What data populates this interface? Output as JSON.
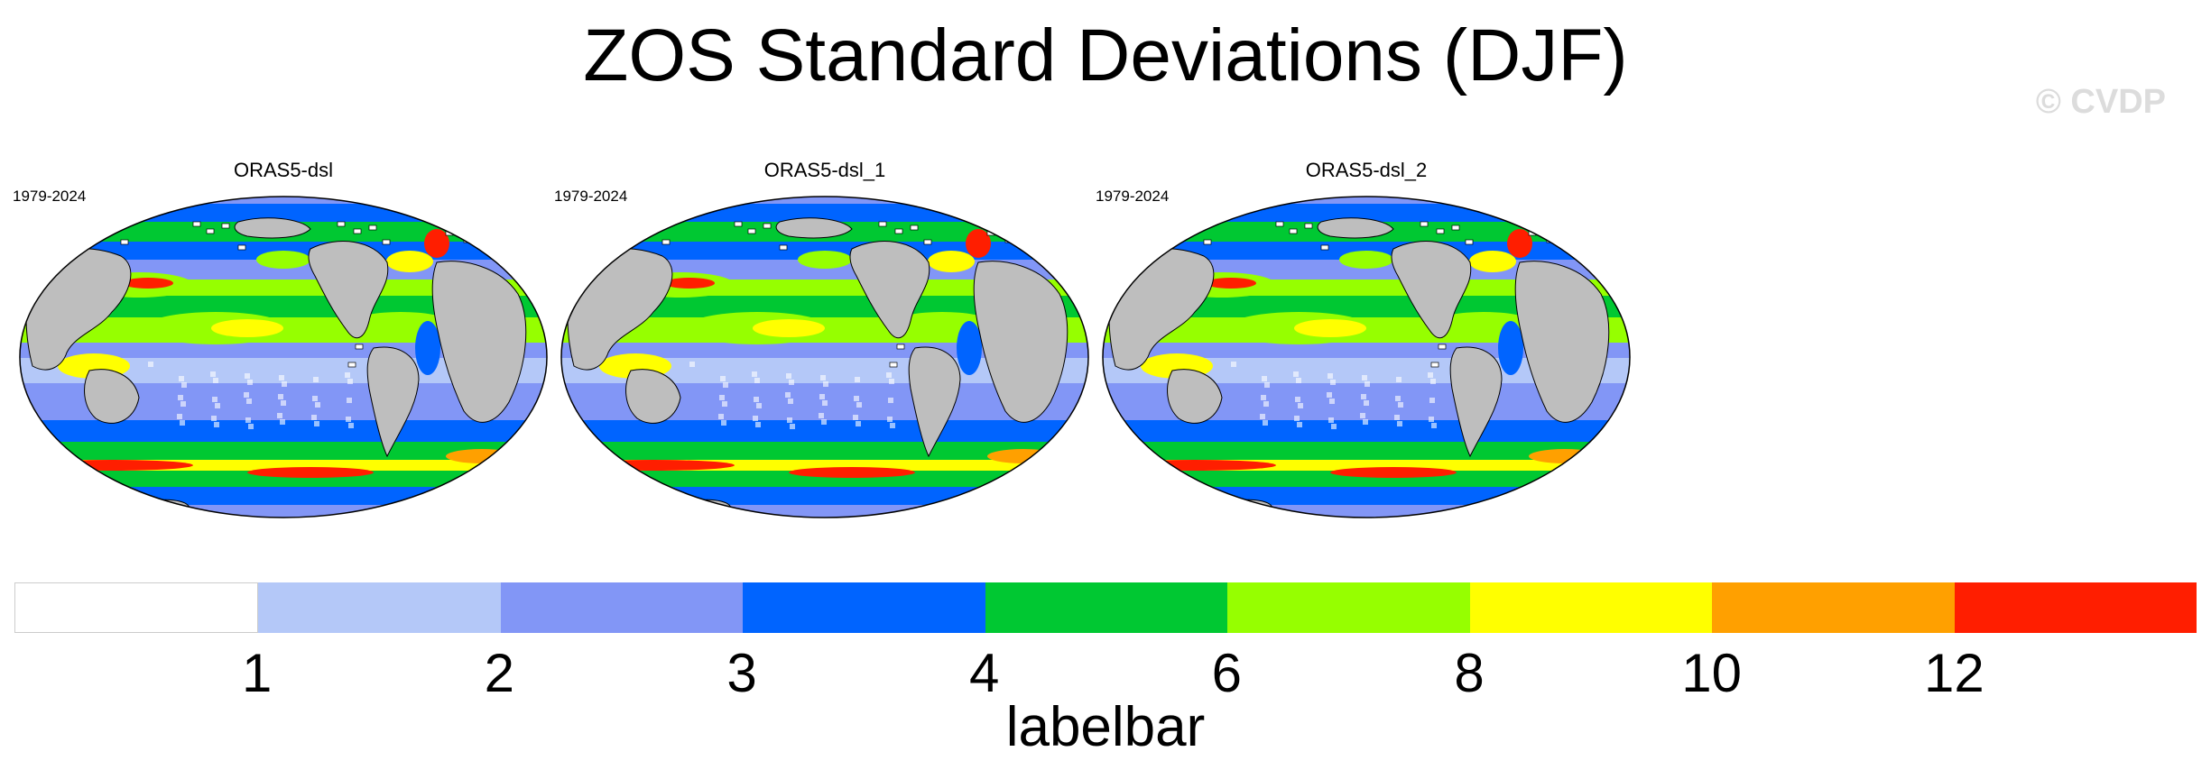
{
  "figure": {
    "title": "ZOS Standard Deviations (DJF)",
    "watermark": "© CVDP"
  },
  "panels": [
    {
      "title": "ORAS5-dsl",
      "period": "1979-2024"
    },
    {
      "title": "ORAS5-dsl_1",
      "period": "1979-2024"
    },
    {
      "title": "ORAS5-dsl_2",
      "period": "1979-2024"
    }
  ],
  "colorbar": {
    "label": "labelbar",
    "ticks": [
      "1",
      "2",
      "3",
      "4",
      "6",
      "8",
      "10",
      "12"
    ],
    "colors": [
      "#ffffff",
      "#b4c8f8",
      "#8296f6",
      "#0064ff",
      "#00c832",
      "#96ff00",
      "#ffff00",
      "#ffa000",
      "#ff1e00"
    ]
  },
  "map_style": {
    "land_color": "#bebebe",
    "ocean_base_color": "#8296f6",
    "outline_color": "#000000"
  }
}
